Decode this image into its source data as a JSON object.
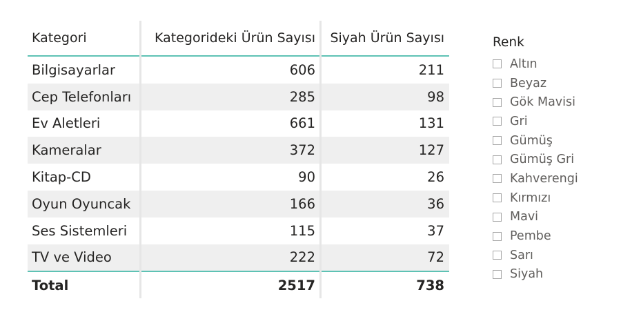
{
  "table": {
    "columns": [
      "Kategori",
      "Kategorideki Ürün Sayısı",
      "Siyah Ürün Sayısı"
    ],
    "rows": [
      [
        "Bilgisayarlar",
        "606",
        "211"
      ],
      [
        "Cep Telefonları",
        "285",
        "98"
      ],
      [
        "Ev Aletleri",
        "661",
        "131"
      ],
      [
        "Kameralar",
        "372",
        "127"
      ],
      [
        "Kitap-CD",
        "90",
        "26"
      ],
      [
        "Oyun Oyuncak",
        "166",
        "36"
      ],
      [
        "Ses Sistemleri",
        "115",
        "37"
      ],
      [
        "TV ve Video",
        "222",
        "72"
      ]
    ],
    "total": [
      "Total",
      "2517",
      "738"
    ],
    "accent_color": "#5ec2b4",
    "band_color": "#efefef"
  },
  "slicer": {
    "title": "Renk",
    "items": [
      {
        "label": "Altın",
        "checked": false
      },
      {
        "label": "Beyaz",
        "checked": false
      },
      {
        "label": "Gök Mavisi",
        "checked": false
      },
      {
        "label": "Gri",
        "checked": false
      },
      {
        "label": "Gümüş",
        "checked": false
      },
      {
        "label": "Gümüş Gri",
        "checked": false
      },
      {
        "label": "Kahverengi",
        "checked": false
      },
      {
        "label": "Kırmızı",
        "checked": false
      },
      {
        "label": "Mavi",
        "checked": false
      },
      {
        "label": "Pembe",
        "checked": false
      },
      {
        "label": "Sarı",
        "checked": false
      },
      {
        "label": "Siyah",
        "checked": false
      }
    ]
  }
}
